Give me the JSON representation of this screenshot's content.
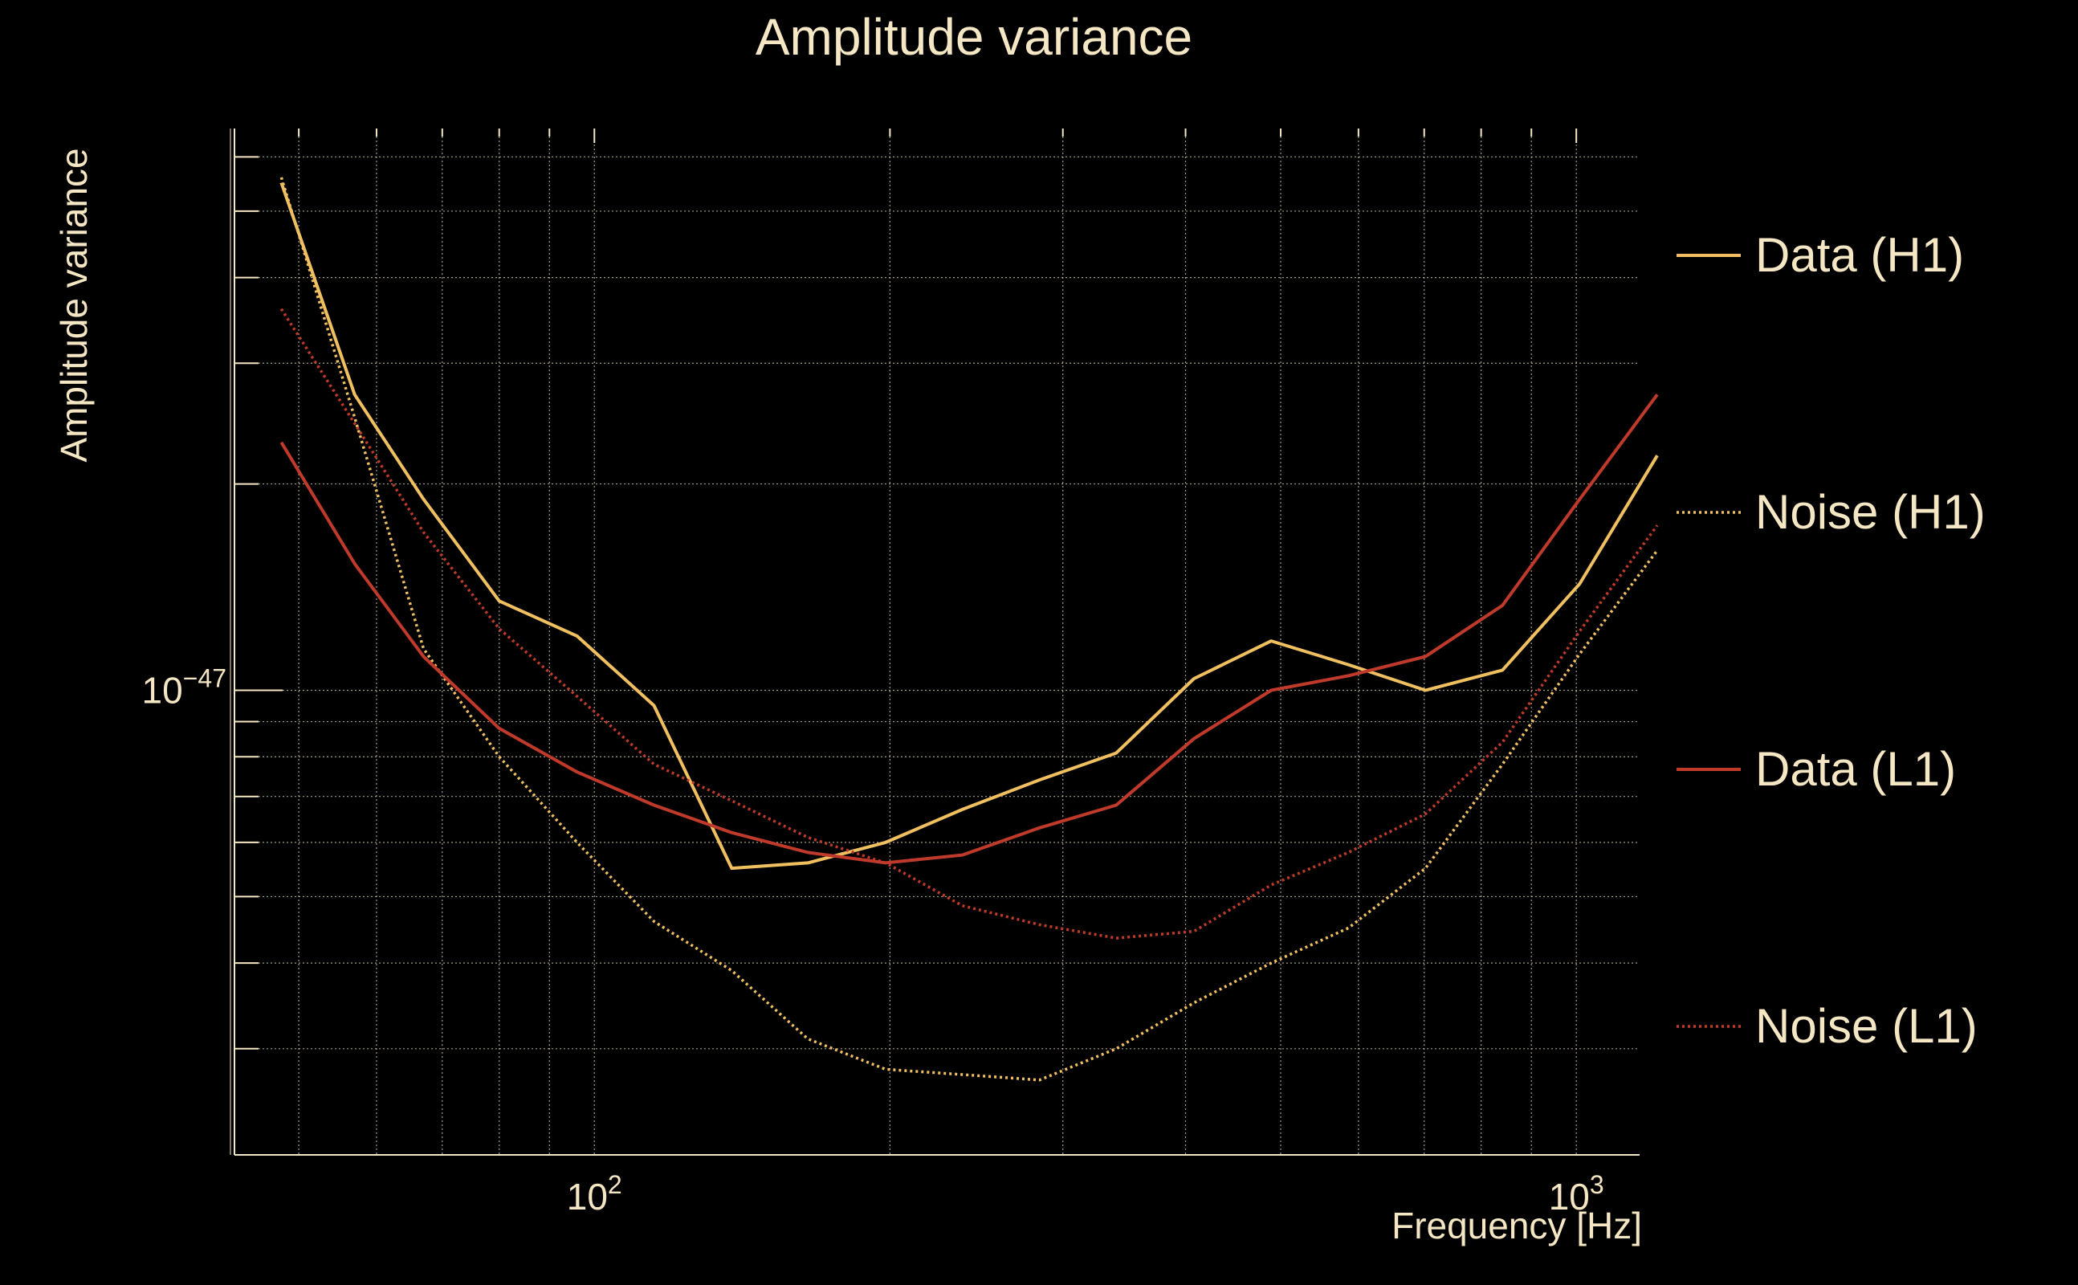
{
  "chart_data": {
    "type": "line",
    "title": "Amplitude variance",
    "xlabel": "Frequency [Hz]",
    "ylabel": "Amplitude variance",
    "x_scale": "log",
    "y_scale": "log",
    "xlim": [
      43,
      1160
    ],
    "ylim": [
      2.1e-48,
      6.6e-47
    ],
    "grid": true,
    "legend_position": "right",
    "x_ticks": [
      {
        "value": 100,
        "base": "10",
        "exp": "2"
      },
      {
        "value": 1000,
        "base": "10",
        "exp": "3"
      }
    ],
    "y_ticks": [
      {
        "value": 1e-47,
        "base": "10",
        "exp": "−47"
      }
    ],
    "x": [
      48,
      57,
      67,
      80,
      96,
      115,
      138,
      165,
      198,
      237,
      284,
      340,
      408,
      489,
      586,
      702,
      841,
      1008,
      1209
    ],
    "series": [
      {
        "name": "Data (H1)",
        "color": "#f0c060",
        "dash": "solid",
        "values": [
          5.5e-47,
          2.7e-47,
          1.9e-47,
          1.35e-47,
          1.2e-47,
          9.5e-48,
          5.5e-48,
          5.6e-48,
          6e-48,
          6.7e-48,
          7.4e-48,
          8.1e-48,
          1.04e-47,
          1.18e-47,
          1.09e-47,
          1e-47,
          1.07e-47,
          1.43e-47,
          2.2e-47
        ]
      },
      {
        "name": "Noise (H1)",
        "color": "#f0c060",
        "dash": "dotted",
        "values": [
          5.6e-47,
          2.5e-47,
          1.15e-47,
          8e-48,
          6e-48,
          4.6e-48,
          3.9e-48,
          3.1e-48,
          2.8e-48,
          2.75e-48,
          2.7e-48,
          3e-48,
          3.5e-48,
          4e-48,
          4.5e-48,
          5.5e-48,
          7.8e-48,
          1.13e-47,
          1.6e-47
        ]
      },
      {
        "name": "Data (L1)",
        "color": "#c03a2b",
        "dash": "solid",
        "values": [
          2.3e-47,
          1.53e-47,
          1.12e-47,
          8.8e-48,
          7.6e-48,
          6.8e-48,
          6.2e-48,
          5.8e-48,
          5.6e-48,
          5.75e-48,
          6.3e-48,
          6.8e-48,
          8.5e-48,
          1e-47,
          1.05e-47,
          1.12e-47,
          1.33e-47,
          1.9e-47,
          2.7e-47
        ]
      },
      {
        "name": "Noise (L1)",
        "color": "#c03a2b",
        "dash": "dotted",
        "values": [
          3.6e-47,
          2.45e-47,
          1.7e-47,
          1.23e-47,
          9.8e-48,
          7.8e-48,
          6.9e-48,
          6.1e-48,
          5.6e-48,
          4.85e-48,
          4.55e-48,
          4.35e-48,
          4.45e-48,
          5.2e-48,
          5.8e-48,
          6.6e-48,
          8.4e-48,
          1.22e-47,
          1.74e-47
        ]
      }
    ]
  }
}
